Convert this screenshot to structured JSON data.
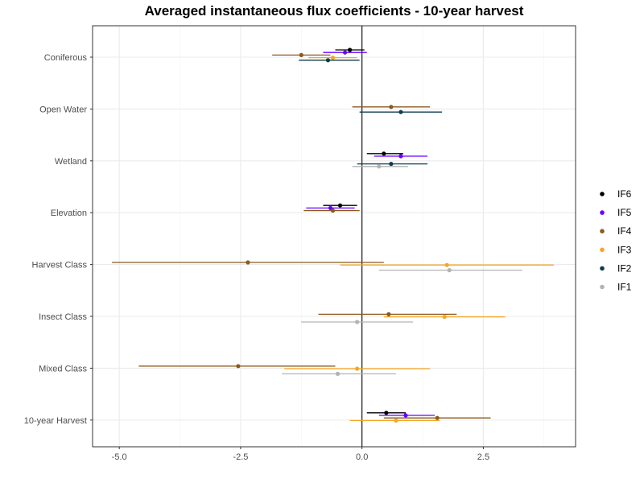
{
  "chart_data": {
    "type": "scatter",
    "title": "Averaged instantaneous flux coefficients - 10-year harvest",
    "xlabel": "",
    "ylabel": "",
    "xlim": [
      -5.55,
      4.4
    ],
    "x_ticks": [
      {
        "value": -5.0,
        "label": "-5.0"
      },
      {
        "value": -2.5,
        "label": "-2.5"
      },
      {
        "value": 0.0,
        "label": "0.0"
      },
      {
        "value": 2.5,
        "label": "2.5"
      }
    ],
    "categories": [
      "Coniferous",
      "Open Water",
      "Wetland",
      "Elevation",
      "Harvest Class",
      "Insect Class",
      "Mixed Class",
      "10-year Harvest"
    ],
    "legend_position": "right",
    "grid": true,
    "series": [
      {
        "name": "IF6",
        "color": "#000000",
        "points": [
          {
            "category": "Coniferous",
            "x": -0.25,
            "lo": -0.55,
            "hi": 0.05
          },
          {
            "category": "Wetland",
            "x": 0.45,
            "lo": 0.1,
            "hi": 0.85
          },
          {
            "category": "Elevation",
            "x": -0.45,
            "lo": -0.8,
            "hi": -0.1
          },
          {
            "category": "10-year Harvest",
            "x": 0.5,
            "lo": 0.1,
            "hi": 0.9
          }
        ]
      },
      {
        "name": "IF5",
        "color": "#6a00ff",
        "points": [
          {
            "category": "Coniferous",
            "x": -0.35,
            "lo": -0.8,
            "hi": 0.1
          },
          {
            "category": "Wetland",
            "x": 0.8,
            "lo": 0.25,
            "hi": 1.35
          },
          {
            "category": "Elevation",
            "x": -0.65,
            "lo": -1.15,
            "hi": -0.15
          },
          {
            "category": "10-year Harvest",
            "x": 0.9,
            "lo": 0.35,
            "hi": 1.5
          }
        ]
      },
      {
        "name": "IF4",
        "color": "#8b5a1f",
        "points": [
          {
            "category": "Coniferous",
            "x": -1.25,
            "lo": -1.85,
            "hi": -0.65
          },
          {
            "category": "Open Water",
            "x": 0.6,
            "lo": -0.2,
            "hi": 1.4
          },
          {
            "category": "Elevation",
            "x": -0.6,
            "lo": -1.2,
            "hi": -0.05
          },
          {
            "category": "Harvest Class",
            "x": -2.35,
            "lo": -5.15,
            "hi": 0.45
          },
          {
            "category": "Insect Class",
            "x": 0.55,
            "lo": -0.9,
            "hi": 1.95
          },
          {
            "category": "Mixed Class",
            "x": -2.55,
            "lo": -4.6,
            "hi": -0.55
          },
          {
            "category": "10-year Harvest",
            "x": 1.55,
            "lo": 0.45,
            "hi": 2.65
          }
        ]
      },
      {
        "name": "IF3",
        "color": "#f5a623",
        "points": [
          {
            "category": "Coniferous",
            "x": -0.6,
            "lo": -1.1,
            "hi": -0.1
          },
          {
            "category": "Harvest Class",
            "x": 1.75,
            "lo": -0.45,
            "hi": 3.95
          },
          {
            "category": "Insect Class",
            "x": 1.7,
            "lo": 0.45,
            "hi": 2.95
          },
          {
            "category": "Mixed Class",
            "x": -0.1,
            "lo": -1.6,
            "hi": 1.4
          },
          {
            "category": "10-year Harvest",
            "x": 0.7,
            "lo": -0.25,
            "hi": 1.6
          }
        ]
      },
      {
        "name": "IF2",
        "color": "#0d3d4d",
        "points": [
          {
            "category": "Coniferous",
            "x": -0.7,
            "lo": -1.3,
            "hi": -0.05
          },
          {
            "category": "Open Water",
            "x": 0.8,
            "lo": -0.05,
            "hi": 1.65
          },
          {
            "category": "Wetland",
            "x": 0.6,
            "lo": -0.1,
            "hi": 1.35
          }
        ]
      },
      {
        "name": "IF1",
        "color": "#b3b3b3",
        "points": [
          {
            "category": "Wetland",
            "x": 0.35,
            "lo": -0.2,
            "hi": 0.95
          },
          {
            "category": "Harvest Class",
            "x": 1.8,
            "lo": 0.35,
            "hi": 3.3
          },
          {
            "category": "Insect Class",
            "x": -0.1,
            "lo": -1.25,
            "hi": 1.05
          },
          {
            "category": "Mixed Class",
            "x": -0.5,
            "lo": -1.65,
            "hi": 0.7
          }
        ]
      }
    ]
  }
}
